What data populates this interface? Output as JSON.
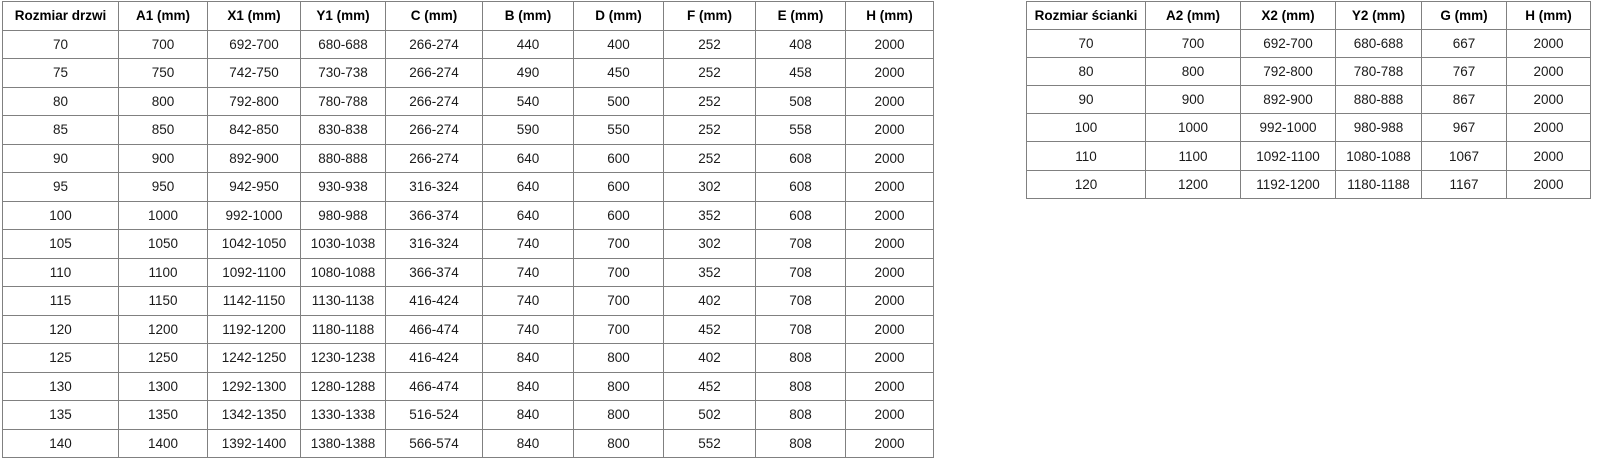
{
  "doors_table": {
    "name": "door-sizes",
    "headers": [
      "Rozmiar drzwi",
      "A1 (mm)",
      "X1 (mm)",
      "Y1 (mm)",
      "C (mm)",
      "B (mm)",
      "D (mm)",
      "F (mm)",
      "E (mm)",
      "H (mm)"
    ],
    "rows": [
      [
        "70",
        "700",
        "692-700",
        "680-688",
        "266-274",
        "440",
        "400",
        "252",
        "408",
        "2000"
      ],
      [
        "75",
        "750",
        "742-750",
        "730-738",
        "266-274",
        "490",
        "450",
        "252",
        "458",
        "2000"
      ],
      [
        "80",
        "800",
        "792-800",
        "780-788",
        "266-274",
        "540",
        "500",
        "252",
        "508",
        "2000"
      ],
      [
        "85",
        "850",
        "842-850",
        "830-838",
        "266-274",
        "590",
        "550",
        "252",
        "558",
        "2000"
      ],
      [
        "90",
        "900",
        "892-900",
        "880-888",
        "266-274",
        "640",
        "600",
        "252",
        "608",
        "2000"
      ],
      [
        "95",
        "950",
        "942-950",
        "930-938",
        "316-324",
        "640",
        "600",
        "302",
        "608",
        "2000"
      ],
      [
        "100",
        "1000",
        "992-1000",
        "980-988",
        "366-374",
        "640",
        "600",
        "352",
        "608",
        "2000"
      ],
      [
        "105",
        "1050",
        "1042-1050",
        "1030-1038",
        "316-324",
        "740",
        "700",
        "302",
        "708",
        "2000"
      ],
      [
        "110",
        "1100",
        "1092-1100",
        "1080-1088",
        "366-374",
        "740",
        "700",
        "352",
        "708",
        "2000"
      ],
      [
        "115",
        "1150",
        "1142-1150",
        "1130-1138",
        "416-424",
        "740",
        "700",
        "402",
        "708",
        "2000"
      ],
      [
        "120",
        "1200",
        "1192-1200",
        "1180-1188",
        "466-474",
        "740",
        "700",
        "452",
        "708",
        "2000"
      ],
      [
        "125",
        "1250",
        "1242-1250",
        "1230-1238",
        "416-424",
        "840",
        "800",
        "402",
        "808",
        "2000"
      ],
      [
        "130",
        "1300",
        "1292-1300",
        "1280-1288",
        "466-474",
        "840",
        "800",
        "452",
        "808",
        "2000"
      ],
      [
        "135",
        "1350",
        "1342-1350",
        "1330-1338",
        "516-524",
        "840",
        "800",
        "502",
        "808",
        "2000"
      ],
      [
        "140",
        "1400",
        "1392-1400",
        "1380-1388",
        "566-574",
        "840",
        "800",
        "552",
        "808",
        "2000"
      ]
    ]
  },
  "walls_table": {
    "name": "wall-sizes",
    "headers": [
      "Rozmiar ścianki",
      "A2 (mm)",
      "X2 (mm)",
      "Y2 (mm)",
      "G (mm)",
      "H (mm)"
    ],
    "rows": [
      [
        "70",
        "700",
        "692-700",
        "680-688",
        "667",
        "2000"
      ],
      [
        "80",
        "800",
        "792-800",
        "780-788",
        "767",
        "2000"
      ],
      [
        "90",
        "900",
        "892-900",
        "880-888",
        "867",
        "2000"
      ],
      [
        "100",
        "1000",
        "992-1000",
        "980-988",
        "967",
        "2000"
      ],
      [
        "110",
        "1100",
        "1092-1100",
        "1080-1088",
        "1067",
        "2000"
      ],
      [
        "120",
        "1200",
        "1192-1200",
        "1180-1188",
        "1167",
        "2000"
      ]
    ]
  },
  "colors": {
    "border": "#808080",
    "text": "#1a1a1a",
    "background": "#ffffff"
  }
}
